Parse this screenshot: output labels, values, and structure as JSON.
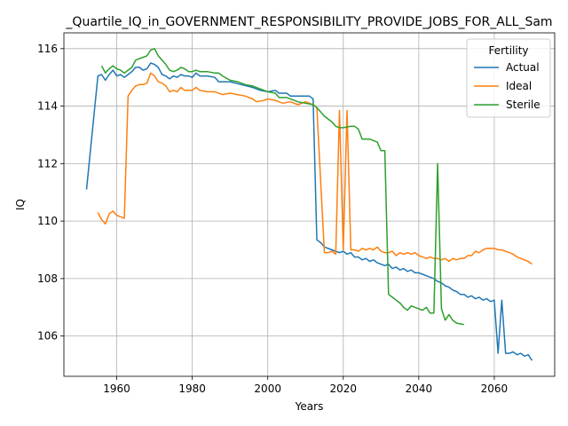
{
  "chart_data": {
    "type": "line",
    "title": "_Quartile_IQ_in_GOVERNMENT_RESPONSIBILITY_PROVIDE_JOBS_FOR_ALL_Sam",
    "xlabel": "Years",
    "ylabel": "IQ",
    "xlim": [
      1946,
      2076
    ],
    "ylim": [
      104.6,
      116.55
    ],
    "xticks": [
      1960,
      1980,
      2000,
      2020,
      2040,
      2060
    ],
    "yticks": [
      106,
      108,
      110,
      112,
      114,
      116
    ],
    "grid": true,
    "legend": {
      "title": "Fertility",
      "placement": "top-right"
    },
    "series": [
      {
        "name": "Actual",
        "color": "#1f77b4",
        "points": [
          [
            1952,
            111.1
          ],
          [
            1955,
            115.05
          ],
          [
            1956,
            115.1
          ],
          [
            1957,
            114.9
          ],
          [
            1958,
            115.1
          ],
          [
            1959,
            115.25
          ],
          [
            1960,
            115.05
          ],
          [
            1961,
            115.1
          ],
          [
            1962,
            115.0
          ],
          [
            1963,
            115.1
          ],
          [
            1964,
            115.2
          ],
          [
            1965,
            115.35
          ],
          [
            1966,
            115.35
          ],
          [
            1967,
            115.25
          ],
          [
            1968,
            115.3
          ],
          [
            1969,
            115.5
          ],
          [
            1970,
            115.45
          ],
          [
            1971,
            115.35
          ],
          [
            1972,
            115.1
          ],
          [
            1973,
            115.05
          ],
          [
            1974,
            114.95
          ],
          [
            1975,
            115.05
          ],
          [
            1976,
            115.0
          ],
          [
            1977,
            115.1
          ],
          [
            1978,
            115.05
          ],
          [
            1979,
            115.05
          ],
          [
            1980,
            115.0
          ],
          [
            1981,
            115.15
          ],
          [
            1982,
            115.05
          ],
          [
            1984,
            115.05
          ],
          [
            1986,
            115.0
          ],
          [
            1987,
            114.85
          ],
          [
            1990,
            114.85
          ],
          [
            1993,
            114.75
          ],
          [
            1996,
            114.65
          ],
          [
            1998,
            114.55
          ],
          [
            2000,
            114.5
          ],
          [
            2002,
            114.55
          ],
          [
            2003,
            114.45
          ],
          [
            2005,
            114.45
          ],
          [
            2006,
            114.35
          ],
          [
            2008,
            114.35
          ],
          [
            2010,
            114.35
          ],
          [
            2011,
            114.35
          ],
          [
            2012,
            114.25
          ],
          [
            2013,
            109.35
          ],
          [
            2014,
            109.25
          ],
          [
            2015,
            109.1
          ],
          [
            2017,
            109.0
          ],
          [
            2019,
            108.9
          ],
          [
            2020,
            108.95
          ],
          [
            2021,
            108.85
          ],
          [
            2022,
            108.9
          ],
          [
            2023,
            108.75
          ],
          [
            2024,
            108.75
          ],
          [
            2025,
            108.65
          ],
          [
            2026,
            108.7
          ],
          [
            2027,
            108.6
          ],
          [
            2028,
            108.65
          ],
          [
            2029,
            108.55
          ],
          [
            2030,
            108.5
          ],
          [
            2031,
            108.45
          ],
          [
            2032,
            108.5
          ],
          [
            2033,
            108.35
          ],
          [
            2034,
            108.4
          ],
          [
            2035,
            108.3
          ],
          [
            2036,
            108.35
          ],
          [
            2037,
            108.25
          ],
          [
            2038,
            108.3
          ],
          [
            2039,
            108.2
          ],
          [
            2040,
            108.2
          ],
          [
            2041,
            108.15
          ],
          [
            2042,
            108.1
          ],
          [
            2043,
            108.05
          ],
          [
            2044,
            108.0
          ],
          [
            2045,
            107.9
          ],
          [
            2046,
            107.85
          ],
          [
            2047,
            107.75
          ],
          [
            2048,
            107.7
          ],
          [
            2049,
            107.6
          ],
          [
            2050,
            107.55
          ],
          [
            2051,
            107.45
          ],
          [
            2052,
            107.45
          ],
          [
            2053,
            107.35
          ],
          [
            2054,
            107.4
          ],
          [
            2055,
            107.3
          ],
          [
            2056,
            107.35
          ],
          [
            2057,
            107.25
          ],
          [
            2058,
            107.3
          ],
          [
            2059,
            107.2
          ],
          [
            2060,
            107.25
          ],
          [
            2061,
            105.4
          ],
          [
            2062,
            107.25
          ],
          [
            2063,
            105.4
          ],
          [
            2064,
            105.4
          ],
          [
            2065,
            105.45
          ],
          [
            2066,
            105.35
          ],
          [
            2067,
            105.4
          ],
          [
            2068,
            105.3
          ],
          [
            2069,
            105.35
          ],
          [
            2070,
            105.15
          ]
        ]
      },
      {
        "name": "Ideal",
        "color": "#ff7f0e",
        "points": [
          [
            1955,
            110.3
          ],
          [
            1956,
            110.05
          ],
          [
            1957,
            109.9
          ],
          [
            1958,
            110.25
          ],
          [
            1959,
            110.35
          ],
          [
            1960,
            110.2
          ],
          [
            1961,
            110.15
          ],
          [
            1962,
            110.1
          ],
          [
            1963,
            114.35
          ],
          [
            1964,
            114.55
          ],
          [
            1965,
            114.7
          ],
          [
            1966,
            114.75
          ],
          [
            1967,
            114.75
          ],
          [
            1968,
            114.8
          ],
          [
            1969,
            115.15
          ],
          [
            1970,
            115.05
          ],
          [
            1971,
            114.85
          ],
          [
            1972,
            114.8
          ],
          [
            1973,
            114.7
          ],
          [
            1974,
            114.5
          ],
          [
            1975,
            114.55
          ],
          [
            1976,
            114.5
          ],
          [
            1977,
            114.65
          ],
          [
            1978,
            114.55
          ],
          [
            1980,
            114.55
          ],
          [
            1981,
            114.65
          ],
          [
            1982,
            114.55
          ],
          [
            1984,
            114.5
          ],
          [
            1986,
            114.5
          ],
          [
            1988,
            114.4
          ],
          [
            1990,
            114.45
          ],
          [
            1992,
            114.4
          ],
          [
            1994,
            114.35
          ],
          [
            1996,
            114.25
          ],
          [
            1997,
            114.15
          ],
          [
            1999,
            114.2
          ],
          [
            2000,
            114.25
          ],
          [
            2002,
            114.2
          ],
          [
            2004,
            114.1
          ],
          [
            2006,
            114.15
          ],
          [
            2008,
            114.05
          ],
          [
            2010,
            114.15
          ],
          [
            2012,
            114.05
          ],
          [
            2013,
            113.95
          ],
          [
            2015,
            108.9
          ],
          [
            2016,
            108.9
          ],
          [
            2017,
            108.95
          ],
          [
            2018,
            108.85
          ],
          [
            2019,
            113.85
          ],
          [
            2020,
            109.0
          ],
          [
            2021,
            113.85
          ],
          [
            2022,
            109.0
          ],
          [
            2023,
            109.0
          ],
          [
            2024,
            108.95
          ],
          [
            2025,
            109.05
          ],
          [
            2026,
            109.0
          ],
          [
            2027,
            109.05
          ],
          [
            2028,
            109.0
          ],
          [
            2029,
            109.1
          ],
          [
            2030,
            108.95
          ],
          [
            2031,
            108.9
          ],
          [
            2032,
            108.9
          ],
          [
            2033,
            108.95
          ],
          [
            2034,
            108.8
          ],
          [
            2035,
            108.9
          ],
          [
            2036,
            108.85
          ],
          [
            2037,
            108.9
          ],
          [
            2038,
            108.85
          ],
          [
            2039,
            108.9
          ],
          [
            2040,
            108.8
          ],
          [
            2041,
            108.75
          ],
          [
            2042,
            108.7
          ],
          [
            2043,
            108.75
          ],
          [
            2044,
            108.7
          ],
          [
            2045,
            108.7
          ],
          [
            2046,
            108.65
          ],
          [
            2047,
            108.7
          ],
          [
            2048,
            108.6
          ],
          [
            2049,
            108.7
          ],
          [
            2050,
            108.65
          ],
          [
            2051,
            108.7
          ],
          [
            2052,
            108.7
          ],
          [
            2053,
            108.8
          ],
          [
            2054,
            108.8
          ],
          [
            2055,
            108.95
          ],
          [
            2056,
            108.9
          ],
          [
            2057,
            109.0
          ],
          [
            2058,
            109.05
          ],
          [
            2059,
            109.05
          ],
          [
            2060,
            109.05
          ],
          [
            2061,
            109.0
          ],
          [
            2062,
            109.0
          ],
          [
            2063,
            108.95
          ],
          [
            2064,
            108.9
          ],
          [
            2065,
            108.85
          ],
          [
            2066,
            108.75
          ],
          [
            2067,
            108.7
          ],
          [
            2068,
            108.65
          ],
          [
            2069,
            108.6
          ],
          [
            2070,
            108.5
          ]
        ]
      },
      {
        "name": "Sterile",
        "color": "#2ca02c",
        "points": [
          [
            1956,
            115.4
          ],
          [
            1957,
            115.15
          ],
          [
            1958,
            115.3
          ],
          [
            1959,
            115.4
          ],
          [
            1960,
            115.3
          ],
          [
            1961,
            115.25
          ],
          [
            1962,
            115.15
          ],
          [
            1963,
            115.25
          ],
          [
            1964,
            115.35
          ],
          [
            1965,
            115.6
          ],
          [
            1966,
            115.65
          ],
          [
            1967,
            115.7
          ],
          [
            1968,
            115.75
          ],
          [
            1969,
            115.95
          ],
          [
            1970,
            116.0
          ],
          [
            1971,
            115.75
          ],
          [
            1972,
            115.6
          ],
          [
            1973,
            115.45
          ],
          [
            1974,
            115.25
          ],
          [
            1975,
            115.2
          ],
          [
            1976,
            115.25
          ],
          [
            1977,
            115.35
          ],
          [
            1978,
            115.3
          ],
          [
            1979,
            115.2
          ],
          [
            1980,
            115.2
          ],
          [
            1981,
            115.25
          ],
          [
            1982,
            115.2
          ],
          [
            1984,
            115.2
          ],
          [
            1986,
            115.15
          ],
          [
            1987,
            115.15
          ],
          [
            1988,
            115.05
          ],
          [
            1990,
            114.9
          ],
          [
            1992,
            114.85
          ],
          [
            1994,
            114.75
          ],
          [
            1996,
            114.7
          ],
          [
            1998,
            114.6
          ],
          [
            2000,
            114.5
          ],
          [
            2002,
            114.45
          ],
          [
            2003,
            114.3
          ],
          [
            2005,
            114.3
          ],
          [
            2007,
            114.2
          ],
          [
            2008,
            114.15
          ],
          [
            2010,
            114.1
          ],
          [
            2012,
            114.05
          ],
          [
            2013,
            113.95
          ],
          [
            2014,
            113.8
          ],
          [
            2015,
            113.65
          ],
          [
            2017,
            113.45
          ],
          [
            2018,
            113.3
          ],
          [
            2019,
            113.25
          ],
          [
            2020,
            113.25
          ],
          [
            2022,
            113.3
          ],
          [
            2023,
            113.3
          ],
          [
            2024,
            113.2
          ],
          [
            2025,
            112.85
          ],
          [
            2026,
            112.85
          ],
          [
            2027,
            112.85
          ],
          [
            2028,
            112.8
          ],
          [
            2029,
            112.75
          ],
          [
            2030,
            112.45
          ],
          [
            2031,
            112.45
          ],
          [
            2032,
            107.45
          ],
          [
            2033,
            107.35
          ],
          [
            2034,
            107.25
          ],
          [
            2035,
            107.15
          ],
          [
            2036,
            107.0
          ],
          [
            2037,
            106.9
          ],
          [
            2038,
            107.05
          ],
          [
            2039,
            107.0
          ],
          [
            2040,
            106.95
          ],
          [
            2041,
            106.9
          ],
          [
            2042,
            107.0
          ],
          [
            2043,
            106.8
          ],
          [
            2044,
            106.8
          ],
          [
            2045,
            112.0
          ],
          [
            2046,
            106.95
          ],
          [
            2047,
            106.55
          ],
          [
            2048,
            106.75
          ],
          [
            2049,
            106.55
          ],
          [
            2050,
            106.45
          ],
          [
            2052,
            106.4
          ]
        ]
      }
    ]
  }
}
